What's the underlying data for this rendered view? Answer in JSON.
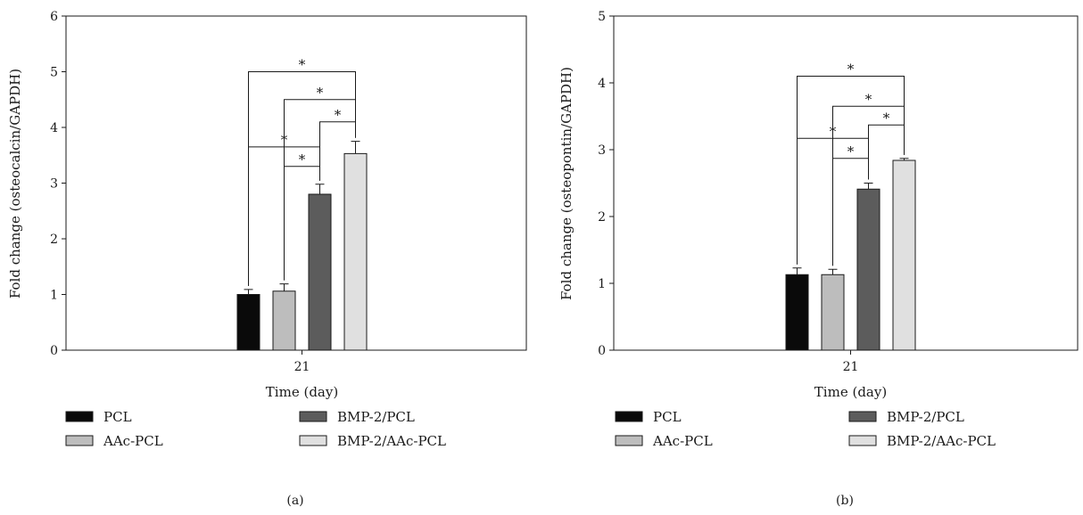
{
  "chart_data": [
    {
      "type": "bar",
      "panel_label": "(a)",
      "xlabel": "Time (day)",
      "ylabel": "Fold change (osteocalcin/GAPDH)",
      "categories": [
        "21"
      ],
      "ylim": [
        0,
        6
      ],
      "yticks": [
        0,
        1,
        2,
        3,
        4,
        5,
        6
      ],
      "series": [
        {
          "name": "PCL",
          "values": [
            1.0
          ],
          "errors": [
            0.09
          ],
          "color": "#0a0a0a"
        },
        {
          "name": "AAc-PCL",
          "values": [
            1.06
          ],
          "errors": [
            0.13
          ],
          "color": "#bdbdbd"
        },
        {
          "name": "BMP-2/PCL",
          "values": [
            2.8
          ],
          "errors": [
            0.18
          ],
          "color": "#5c5c5c"
        },
        {
          "name": "BMP-2/AAc-PCL",
          "values": [
            3.53
          ],
          "errors": [
            0.22
          ],
          "color": "#e0e0e0"
        }
      ],
      "significance": [
        {
          "from": 0,
          "to": 3,
          "y": 5.0,
          "label": "*"
        },
        {
          "from": 1,
          "to": 3,
          "y": 4.5,
          "label": "*"
        },
        {
          "from": 2,
          "to": 3,
          "y": 4.1,
          "label": "*"
        },
        {
          "from": 0,
          "to": 2,
          "y": 3.65,
          "label": "*"
        },
        {
          "from": 1,
          "to": 2,
          "y": 3.3,
          "label": "*"
        }
      ],
      "legend": [
        "PCL",
        "BMP-2/PCL",
        "AAc-PCL",
        "BMP-2/AAc-PCL"
      ]
    },
    {
      "type": "bar",
      "panel_label": "(b)",
      "xlabel": "Time (day)",
      "ylabel": "Fold change (osteopontin/GAPDH)",
      "categories": [
        "21"
      ],
      "ylim": [
        0,
        5
      ],
      "yticks": [
        0,
        1,
        2,
        3,
        4,
        5
      ],
      "series": [
        {
          "name": "PCL",
          "values": [
            1.13
          ],
          "errors": [
            0.1
          ],
          "color": "#0a0a0a"
        },
        {
          "name": "AAc-PCL",
          "values": [
            1.13
          ],
          "errors": [
            0.08
          ],
          "color": "#bdbdbd"
        },
        {
          "name": "BMP-2/PCL",
          "values": [
            2.41
          ],
          "errors": [
            0.09
          ],
          "color": "#5c5c5c"
        },
        {
          "name": "BMP-2/AAc-PCL",
          "values": [
            2.84
          ],
          "errors": [
            0.03
          ],
          "color": "#e0e0e0"
        }
      ],
      "significance": [
        {
          "from": 0,
          "to": 3,
          "y": 4.1,
          "label": "*"
        },
        {
          "from": 1,
          "to": 3,
          "y": 3.65,
          "label": "*"
        },
        {
          "from": 2,
          "to": 3,
          "y": 3.37,
          "label": "*"
        },
        {
          "from": 0,
          "to": 2,
          "y": 3.17,
          "label": "*"
        },
        {
          "from": 1,
          "to": 2,
          "y": 2.87,
          "label": "*"
        }
      ],
      "legend": [
        "PCL",
        "BMP-2/PCL",
        "AAc-PCL",
        "BMP-2/AAc-PCL"
      ]
    }
  ]
}
